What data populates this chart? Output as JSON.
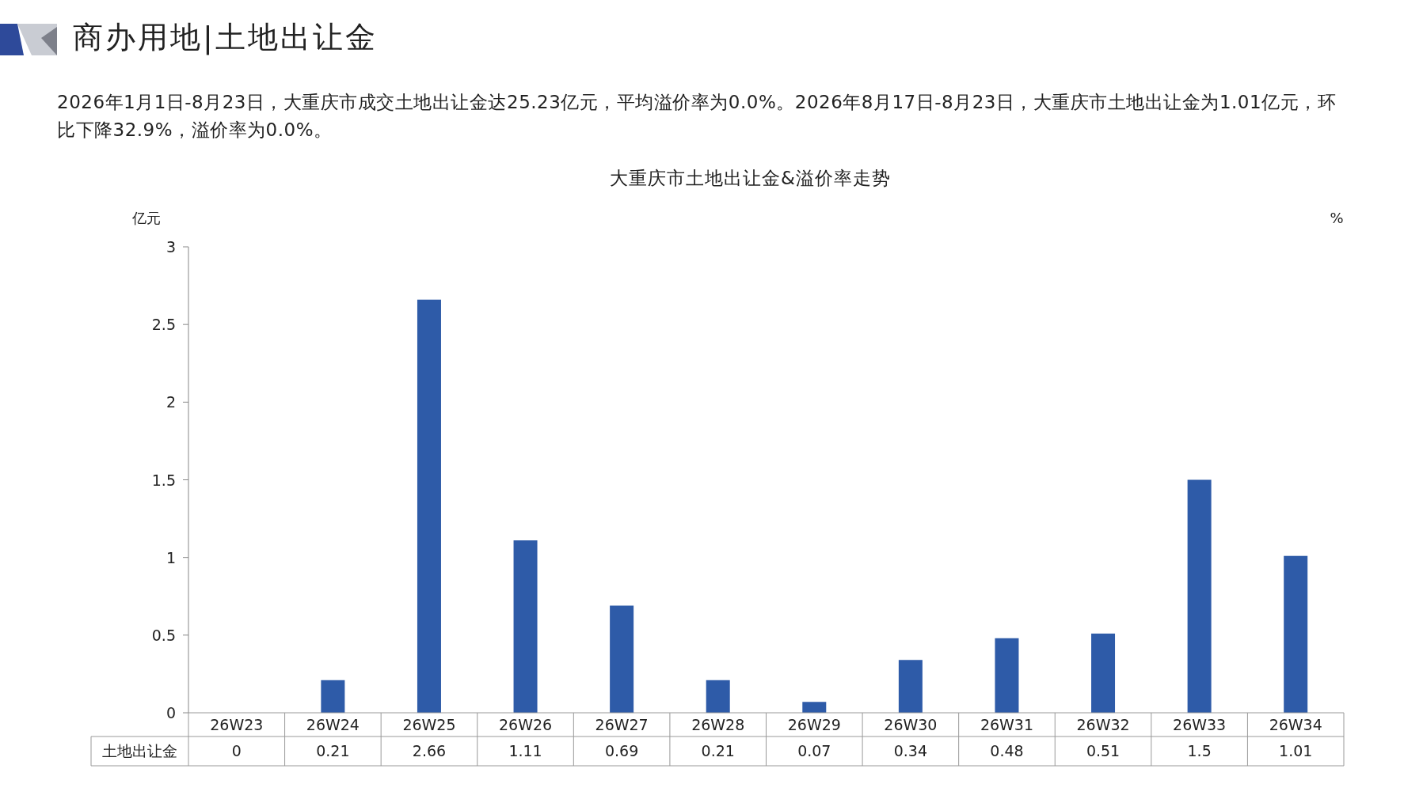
{
  "chart_data": {
    "type": "bar",
    "title": "商办用地|土地出让金",
    "subtitle": "2026年1月1日-8月23日，大重庆市成交土地出让金达25.23亿元，平均溢价率为0.0%。2026年8月17日-8月23日，大重庆市土地出让金为1.01亿元，环比下降32.9%，溢价率为0.0%。",
    "annotations": [
      "大重庆市土地出让金&溢价率走势"
    ],
    "ylabel": "亿元",
    "y2label": "%",
    "categories": [
      "26W23",
      "26W24",
      "26W25",
      "26W26",
      "26W27",
      "26W28",
      "26W29",
      "26W30",
      "26W31",
      "26W32",
      "26W33",
      "26W34"
    ],
    "series": [
      {
        "name": "土地出让金",
        "color": "#2e5ba8",
        "values": [
          0,
          0.21,
          2.66,
          1.11,
          0.69,
          0.21,
          0.07,
          0.34,
          0.48,
          0.51,
          1.5,
          1.01
        ]
      }
    ],
    "ylim": [
      0,
      3
    ],
    "yticks": [
      0,
      0.5,
      1,
      1.5,
      2,
      2.5,
      3
    ],
    "grid": false,
    "data_labels": true
  }
}
